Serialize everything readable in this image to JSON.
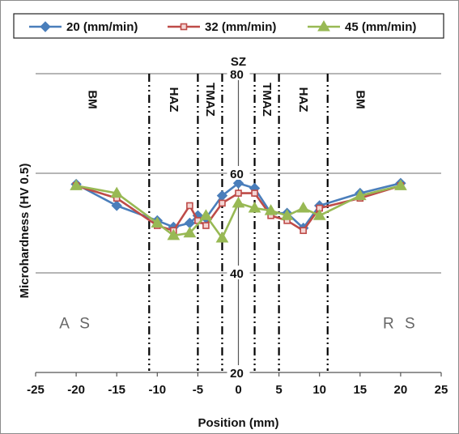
{
  "chart_data": {
    "type": "line",
    "title": "",
    "xlabel": "Position (mm)",
    "ylabel": "Microhardness (HV 0.5)",
    "xlim": [
      -25,
      25
    ],
    "ylim": [
      20,
      80
    ],
    "x_ticks": [
      -25,
      -20,
      -15,
      -10,
      -5,
      0,
      5,
      10,
      15,
      20,
      25
    ],
    "y_ticks": [
      20,
      40,
      60,
      80
    ],
    "grid": "horizontal",
    "legend_position": "top",
    "series": [
      {
        "name": "20 (mm/min)",
        "color": "#4a7ebb",
        "marker": "diamond",
        "x": [
          -20,
          -15,
          -10,
          -8,
          -6,
          -5,
          -4,
          -2,
          0,
          2,
          4,
          6,
          8,
          10,
          15,
          20
        ],
        "y": [
          57.8,
          53.5,
          50.5,
          49.2,
          50.0,
          51.5,
          51.0,
          55.5,
          58.0,
          57.0,
          52.0,
          52.0,
          49.0,
          53.5,
          56.0,
          58.0
        ]
      },
      {
        "name": "32 (mm/min)",
        "color": "#be4b48",
        "marker": "square",
        "x": [
          -20,
          -15,
          -10,
          -8,
          -6,
          -5,
          -4,
          -2,
          0,
          2,
          4,
          6,
          8,
          10,
          15,
          20
        ],
        "y": [
          57.5,
          55.0,
          49.5,
          48.5,
          53.5,
          50.5,
          49.5,
          54.0,
          56.0,
          56.0,
          51.5,
          50.5,
          48.5,
          53.0,
          55.0,
          57.5
        ]
      },
      {
        "name": "45 (mm/min)",
        "color": "#98b954",
        "marker": "triangle",
        "x": [
          -20,
          -15,
          -10,
          -8,
          -6,
          -4,
          -2,
          0,
          2,
          4,
          6,
          8,
          10,
          15,
          20
        ],
        "y": [
          57.5,
          56.0,
          50.0,
          47.5,
          48.0,
          51.5,
          47.0,
          54.0,
          53.0,
          52.5,
          51.5,
          53.0,
          51.5,
          55.5,
          57.5
        ]
      }
    ],
    "zone_boundaries": [
      -11,
      -5,
      -2,
      2,
      5,
      11
    ],
    "zone_labels": [
      {
        "text": "BM",
        "x": -18
      },
      {
        "text": "HAZ",
        "x": -8
      },
      {
        "text": "TMAZ",
        "x": -3.5
      },
      {
        "text": "TMAZ",
        "x": 3.5
      },
      {
        "text": "HAZ",
        "x": 8
      },
      {
        "text": "BM",
        "x": 15
      }
    ],
    "annotations": [
      {
        "text": "SZ",
        "x": 0,
        "y": 81.5
      },
      {
        "text": "A S",
        "x": -20,
        "y": 30
      },
      {
        "text": "R S",
        "x": 20,
        "y": 30
      }
    ]
  }
}
